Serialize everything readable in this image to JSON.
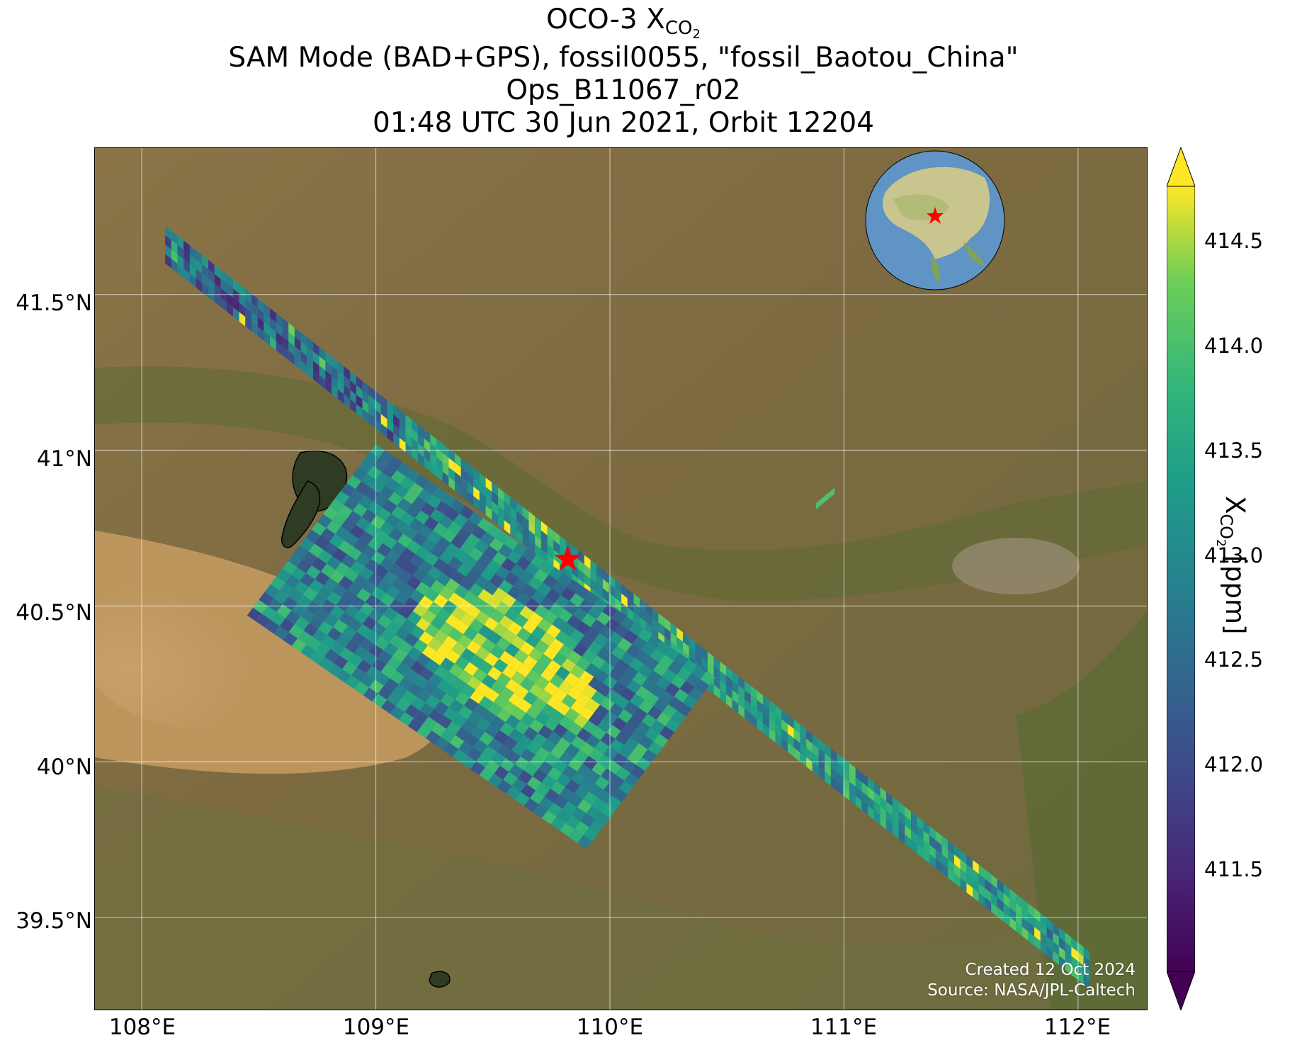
{
  "title": {
    "line1_prefix": "OCO-3 X",
    "line1_sub": "CO",
    "line1_subsub": "2",
    "line2": "SAM Mode (BAD+GPS), fossil0055, \"fossil_Baotou_China\"",
    "line3": "Ops_B11067_r02",
    "line4": "01:48 UTC 30 Jun 2021, Orbit 12204"
  },
  "map": {
    "lon_range": [
      107.8,
      112.3
    ],
    "lat_range": [
      39.2,
      41.97
    ],
    "x_ticks": [
      "108°E",
      "109°E",
      "110°E",
      "111°E",
      "112°E"
    ],
    "y_ticks": [
      "41.5°N",
      "41°N",
      "40.5°N",
      "40°N",
      "39.5°N"
    ],
    "grid": true,
    "basemap": "satellite imagery",
    "target_marker": {
      "name": "Baotou target",
      "lon": 109.82,
      "lat": 40.65,
      "color": "#ff0000",
      "shape": "star"
    }
  },
  "colorbar": {
    "colormap": "viridis",
    "range": [
      411.0,
      414.75
    ],
    "ticks": [
      "414.5",
      "414.0",
      "413.5",
      "413.0",
      "412.5",
      "412.0",
      "411.5"
    ],
    "extend": "both",
    "label_prefix": "X",
    "label_sub": "CO",
    "label_subsub": "2",
    "label_suffix": " [ppm]"
  },
  "credit": {
    "line1": "Created 12 Oct 2024",
    "line2": "Source: NASA/JPL-Caltech"
  },
  "inset": {
    "type": "globe locator",
    "marker": "star",
    "marker_color": "#ff0000"
  }
}
